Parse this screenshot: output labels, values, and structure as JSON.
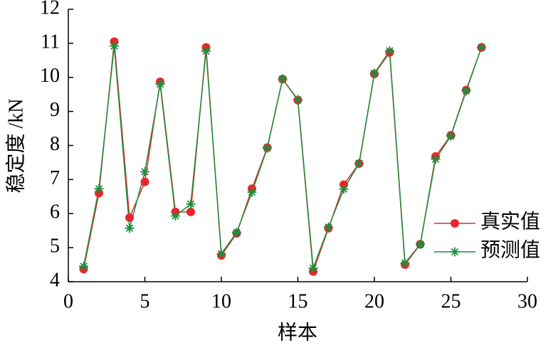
{
  "chart_data": {
    "type": "line",
    "x_label": "样本",
    "y_label": "稳定度 /kN",
    "x": [
      1,
      2,
      3,
      4,
      5,
      6,
      7,
      8,
      9,
      10,
      11,
      12,
      13,
      14,
      15,
      16,
      17,
      18,
      19,
      20,
      21,
      22,
      23,
      24,
      25,
      26,
      27
    ],
    "series": [
      {
        "name": "真实值",
        "color": "#e8262b",
        "marker": "circle",
        "values": [
          4.37,
          6.6,
          11.05,
          5.88,
          6.93,
          9.87,
          6.05,
          6.05,
          10.88,
          4.77,
          5.42,
          6.73,
          7.94,
          9.95,
          9.33,
          4.3,
          5.57,
          6.85,
          7.47,
          10.1,
          10.73,
          4.5,
          5.1,
          7.68,
          8.3,
          9.63,
          10.88
        ]
      },
      {
        "name": "预测值",
        "color": "#1a8f3c",
        "marker": "asterisk",
        "values": [
          4.45,
          6.73,
          10.92,
          5.57,
          7.23,
          9.8,
          5.93,
          6.28,
          10.77,
          4.82,
          5.45,
          6.63,
          7.92,
          9.95,
          9.35,
          4.4,
          5.6,
          6.72,
          7.47,
          10.12,
          10.78,
          4.55,
          5.1,
          7.6,
          8.28,
          9.6,
          10.88
        ]
      }
    ],
    "xlim": [
      0,
      30
    ],
    "xticks": [
      0,
      5,
      10,
      15,
      20,
      25,
      30
    ],
    "ylim": [
      4,
      12
    ],
    "yticks": [
      4,
      5,
      6,
      7,
      8,
      9,
      10,
      11,
      12
    ],
    "grid": false,
    "legend": "lower right"
  }
}
